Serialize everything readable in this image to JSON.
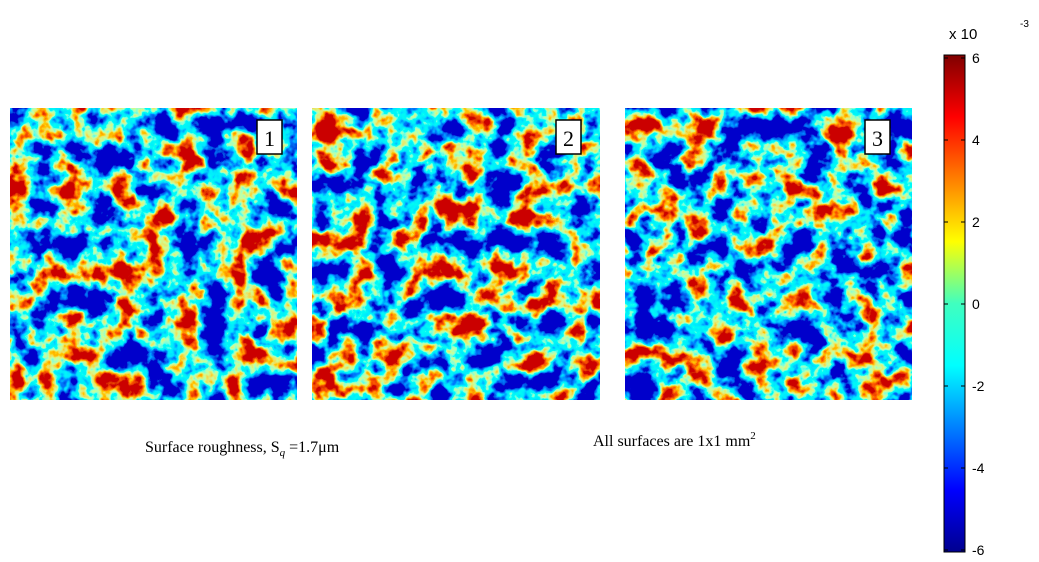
{
  "panels": [
    {
      "label": "1"
    },
    {
      "label": "2"
    },
    {
      "label": "3"
    }
  ],
  "captions": {
    "roughness": {
      "text": "Surface roughness, S",
      "subscript": "q",
      "rest": " =1.7μm"
    },
    "size": {
      "text": "All surfaces are 1x1 mm",
      "superscript": "2"
    }
  },
  "colorbar": {
    "multiplier": "x 10",
    "exponent": "-3",
    "lim": [
      -6,
      6
    ],
    "ticks": [
      6,
      4,
      2,
      0,
      -2,
      -4,
      -6
    ]
  }
}
